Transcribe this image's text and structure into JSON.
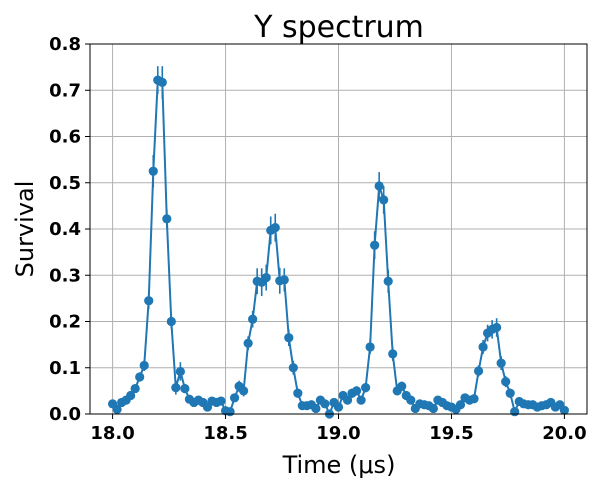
{
  "chart_data": {
    "type": "scatter",
    "title": "Y spectrum",
    "xlabel": "Time (μs)",
    "ylabel": "Survival",
    "xlim": [
      17.9,
      20.1
    ],
    "ylim": [
      0.0,
      0.8
    ],
    "xticks": [
      "18.0",
      "18.5",
      "19.0",
      "19.5",
      "20.0"
    ],
    "yticks": [
      "0.0",
      "0.1",
      "0.2",
      "0.3",
      "0.4",
      "0.5",
      "0.6",
      "0.7",
      "0.8"
    ],
    "grid": true,
    "color": "#1f77b4",
    "series": [
      {
        "points": [
          [
            18.0,
            0.022,
            0.005
          ],
          [
            18.02,
            0.01,
            0.005
          ],
          [
            18.04,
            0.025,
            0.005
          ],
          [
            18.06,
            0.03,
            0.005
          ],
          [
            18.08,
            0.04,
            0.006
          ],
          [
            18.1,
            0.055,
            0.008
          ],
          [
            18.12,
            0.08,
            0.01
          ],
          [
            18.14,
            0.105,
            0.012
          ],
          [
            18.16,
            0.245,
            0.018
          ],
          [
            18.18,
            0.525,
            0.035
          ],
          [
            18.2,
            0.722,
            0.03
          ],
          [
            18.22,
            0.717,
            0.035
          ],
          [
            18.24,
            0.422,
            0.02
          ],
          [
            18.26,
            0.2,
            0.015
          ],
          [
            18.28,
            0.057,
            0.015
          ],
          [
            18.3,
            0.092,
            0.02
          ],
          [
            18.32,
            0.055,
            0.01
          ],
          [
            18.34,
            0.032,
            0.008
          ],
          [
            18.36,
            0.025,
            0.007
          ],
          [
            18.38,
            0.03,
            0.007
          ],
          [
            18.4,
            0.025,
            0.007
          ],
          [
            18.42,
            0.015,
            0.006
          ],
          [
            18.44,
            0.028,
            0.006
          ],
          [
            18.46,
            0.025,
            0.006
          ],
          [
            18.48,
            0.028,
            0.006
          ],
          [
            18.5,
            0.007,
            0.005
          ],
          [
            18.52,
            0.005,
            0.005
          ],
          [
            18.54,
            0.035,
            0.007
          ],
          [
            18.56,
            0.06,
            0.012
          ],
          [
            18.58,
            0.05,
            0.012
          ],
          [
            18.6,
            0.153,
            0.015
          ],
          [
            18.62,
            0.205,
            0.018
          ],
          [
            18.64,
            0.287,
            0.028
          ],
          [
            18.66,
            0.285,
            0.03
          ],
          [
            18.68,
            0.295,
            0.028
          ],
          [
            18.7,
            0.397,
            0.03
          ],
          [
            18.72,
            0.403,
            0.03
          ],
          [
            18.74,
            0.288,
            0.028
          ],
          [
            18.76,
            0.29,
            0.025
          ],
          [
            18.78,
            0.165,
            0.018
          ],
          [
            18.8,
            0.1,
            0.015
          ],
          [
            18.82,
            0.045,
            0.01
          ],
          [
            18.84,
            0.018,
            0.008
          ],
          [
            18.86,
            0.018,
            0.006
          ],
          [
            18.88,
            0.02,
            0.006
          ],
          [
            18.9,
            0.012,
            0.006
          ],
          [
            18.92,
            0.03,
            0.007
          ],
          [
            18.94,
            0.022,
            0.006
          ],
          [
            18.96,
            0.0,
            0.005
          ],
          [
            18.98,
            0.025,
            0.006
          ],
          [
            19.0,
            0.015,
            0.006
          ],
          [
            19.02,
            0.04,
            0.008
          ],
          [
            19.04,
            0.03,
            0.008
          ],
          [
            19.06,
            0.045,
            0.01
          ],
          [
            19.08,
            0.05,
            0.01
          ],
          [
            19.1,
            0.03,
            0.008
          ],
          [
            19.12,
            0.057,
            0.01
          ],
          [
            19.14,
            0.145,
            0.015
          ],
          [
            19.16,
            0.365,
            0.03
          ],
          [
            19.18,
            0.493,
            0.03
          ],
          [
            19.2,
            0.463,
            0.03
          ],
          [
            19.22,
            0.287,
            0.025
          ],
          [
            19.24,
            0.13,
            0.015
          ],
          [
            19.26,
            0.05,
            0.01
          ],
          [
            19.28,
            0.06,
            0.01
          ],
          [
            19.3,
            0.04,
            0.008
          ],
          [
            19.32,
            0.03,
            0.007
          ],
          [
            19.34,
            0.012,
            0.006
          ],
          [
            19.36,
            0.022,
            0.006
          ],
          [
            19.38,
            0.02,
            0.006
          ],
          [
            19.4,
            0.018,
            0.006
          ],
          [
            19.42,
            0.012,
            0.006
          ],
          [
            19.44,
            0.03,
            0.006
          ],
          [
            19.46,
            0.025,
            0.006
          ],
          [
            19.48,
            0.018,
            0.006
          ],
          [
            19.5,
            0.015,
            0.006
          ],
          [
            19.52,
            0.01,
            0.006
          ],
          [
            19.54,
            0.02,
            0.006
          ],
          [
            19.56,
            0.035,
            0.007
          ],
          [
            19.58,
            0.03,
            0.007
          ],
          [
            19.6,
            0.033,
            0.007
          ],
          [
            19.62,
            0.093,
            0.012
          ],
          [
            19.64,
            0.145,
            0.015
          ],
          [
            19.66,
            0.175,
            0.018
          ],
          [
            19.68,
            0.183,
            0.02
          ],
          [
            19.7,
            0.187,
            0.02
          ],
          [
            19.72,
            0.11,
            0.015
          ],
          [
            19.74,
            0.07,
            0.012
          ],
          [
            19.76,
            0.045,
            0.01
          ],
          [
            19.78,
            0.005,
            0.005
          ],
          [
            19.8,
            0.027,
            0.006
          ],
          [
            19.82,
            0.022,
            0.006
          ],
          [
            19.84,
            0.02,
            0.006
          ],
          [
            19.86,
            0.02,
            0.006
          ],
          [
            19.88,
            0.015,
            0.006
          ],
          [
            19.9,
            0.018,
            0.006
          ],
          [
            19.92,
            0.02,
            0.006
          ],
          [
            19.94,
            0.025,
            0.006
          ],
          [
            19.96,
            0.015,
            0.006
          ],
          [
            19.98,
            0.02,
            0.006
          ],
          [
            20.0,
            0.008,
            0.005
          ]
        ]
      }
    ]
  }
}
